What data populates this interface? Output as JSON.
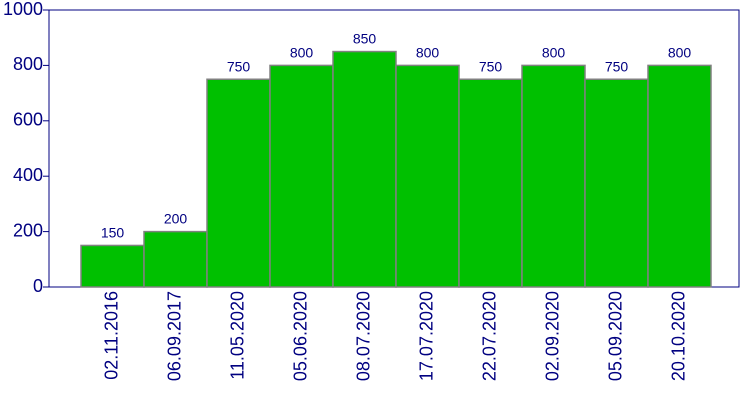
{
  "chart_data": {
    "type": "bar",
    "categories": [
      "02.11.2016",
      "06.09.2017",
      "11.05.2020",
      "05.06.2020",
      "08.07.2020",
      "17.07.2020",
      "22.07.2020",
      "02.09.2020",
      "05.09.2020",
      "20.10.2020"
    ],
    "values": [
      150,
      200,
      750,
      800,
      850,
      800,
      750,
      800,
      750,
      800
    ],
    "color": "#00c000",
    "ylim": [
      0,
      1000
    ],
    "yticks": [
      0,
      200,
      400,
      600,
      800,
      1000
    ],
    "grid": false
  }
}
